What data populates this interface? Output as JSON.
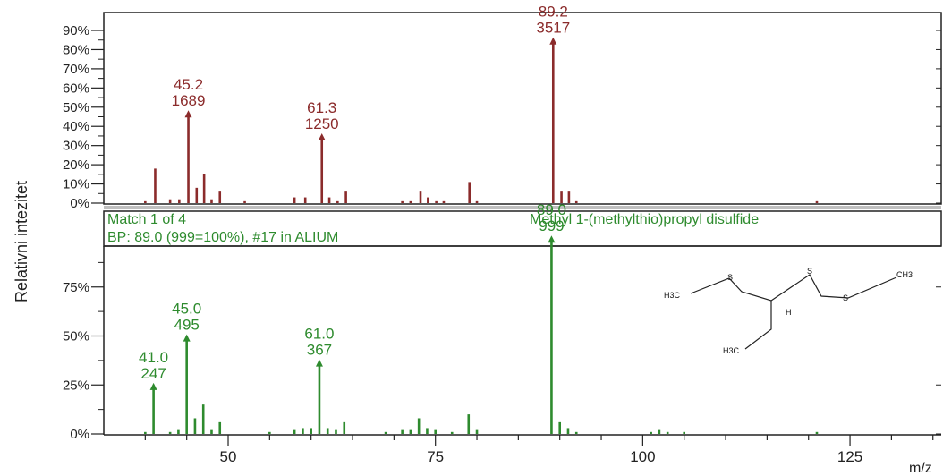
{
  "colors": {
    "top_spectrum": "#8b2b2b",
    "bottom_spectrum": "#2e8b2e",
    "axis": "#222222",
    "info_text": "#2e8b2e",
    "separator": "#bfbfbf"
  },
  "y_axis_label": "Relativni intezitet",
  "x_axis_label": "m/z",
  "info": {
    "match": "Match 1 of 4",
    "base_peak": "BP: 89.0 (999=100%),  #17 in ALIUM",
    "compound": "Methyl 1-(methylthio)propyl disulfide"
  },
  "structure": {
    "atom_labels": [
      "H3C",
      "S",
      "H",
      "S",
      "S",
      "CH3",
      "H3C"
    ]
  },
  "chart_data": [
    {
      "type": "bar",
      "title": "",
      "xlim": [
        35,
        136
      ],
      "ylim": [
        0,
        92
      ],
      "yticks": [
        0,
        10,
        20,
        30,
        40,
        50,
        60,
        70,
        80,
        90
      ],
      "yticklabels": [
        "0%",
        "10%",
        "20%",
        "30%",
        "40%",
        "50%",
        "60%",
        "70%",
        "80%",
        "90%"
      ],
      "peaks": [
        {
          "mz": 40,
          "rel": 1
        },
        {
          "mz": 41.2,
          "rel": 18
        },
        {
          "mz": 43,
          "rel": 2
        },
        {
          "mz": 44.1,
          "rel": 2
        },
        {
          "mz": 45.2,
          "rel": 47
        },
        {
          "mz": 46.2,
          "rel": 8
        },
        {
          "mz": 47.1,
          "rel": 15
        },
        {
          "mz": 48,
          "rel": 2
        },
        {
          "mz": 49,
          "rel": 6
        },
        {
          "mz": 52,
          "rel": 1
        },
        {
          "mz": 58,
          "rel": 3
        },
        {
          "mz": 59.3,
          "rel": 3
        },
        {
          "mz": 61.3,
          "rel": 35
        },
        {
          "mz": 62.2,
          "rel": 3
        },
        {
          "mz": 63.2,
          "rel": 1
        },
        {
          "mz": 64.2,
          "rel": 6
        },
        {
          "mz": 71,
          "rel": 1
        },
        {
          "mz": 72,
          "rel": 1
        },
        {
          "mz": 73.2,
          "rel": 6
        },
        {
          "mz": 74.1,
          "rel": 3
        },
        {
          "mz": 75.1,
          "rel": 1
        },
        {
          "mz": 76,
          "rel": 1
        },
        {
          "mz": 79.1,
          "rel": 11
        },
        {
          "mz": 80,
          "rel": 1
        },
        {
          "mz": 89.2,
          "rel": 85
        },
        {
          "mz": 90.2,
          "rel": 6
        },
        {
          "mz": 91.1,
          "rel": 6
        },
        {
          "mz": 92,
          "rel": 1
        },
        {
          "mz": 121,
          "rel": 1
        }
      ],
      "labeled_peaks": [
        {
          "mz": 45.2,
          "rel": 47,
          "label1": "45.2",
          "label2": "1689"
        },
        {
          "mz": 61.3,
          "rel": 35,
          "label1": "61.3",
          "label2": "1250"
        },
        {
          "mz": 89.2,
          "rel": 85,
          "label1": "89.2",
          "label2": "3517"
        }
      ]
    },
    {
      "type": "bar",
      "title": "",
      "xlabel": "m/z",
      "xlim": [
        35,
        136
      ],
      "ylim": [
        0,
        100
      ],
      "xticks": [
        50,
        75,
        100,
        125
      ],
      "xticklabels": [
        "50",
        "75",
        "100",
        "125"
      ],
      "yticks": [
        0,
        25,
        50,
        75
      ],
      "yticklabels": [
        "0%",
        "25%",
        "50%",
        "75%"
      ],
      "peaks": [
        {
          "mz": 40,
          "rel": 1
        },
        {
          "mz": 41,
          "rel": 24.7
        },
        {
          "mz": 43,
          "rel": 1
        },
        {
          "mz": 44,
          "rel": 2
        },
        {
          "mz": 45,
          "rel": 49.5
        },
        {
          "mz": 46,
          "rel": 8
        },
        {
          "mz": 47,
          "rel": 15
        },
        {
          "mz": 48,
          "rel": 2
        },
        {
          "mz": 49,
          "rel": 6
        },
        {
          "mz": 55,
          "rel": 1
        },
        {
          "mz": 58,
          "rel": 2
        },
        {
          "mz": 59,
          "rel": 3
        },
        {
          "mz": 60,
          "rel": 3
        },
        {
          "mz": 61,
          "rel": 36.7
        },
        {
          "mz": 62,
          "rel": 3
        },
        {
          "mz": 63,
          "rel": 2
        },
        {
          "mz": 64,
          "rel": 6
        },
        {
          "mz": 69,
          "rel": 1
        },
        {
          "mz": 71,
          "rel": 2
        },
        {
          "mz": 72,
          "rel": 2
        },
        {
          "mz": 73,
          "rel": 8
        },
        {
          "mz": 74,
          "rel": 3
        },
        {
          "mz": 75,
          "rel": 2
        },
        {
          "mz": 77,
          "rel": 1
        },
        {
          "mz": 79,
          "rel": 10
        },
        {
          "mz": 80,
          "rel": 2
        },
        {
          "mz": 89,
          "rel": 99.9
        },
        {
          "mz": 90,
          "rel": 6
        },
        {
          "mz": 91,
          "rel": 3
        },
        {
          "mz": 92,
          "rel": 1
        },
        {
          "mz": 101,
          "rel": 1
        },
        {
          "mz": 102,
          "rel": 2
        },
        {
          "mz": 103,
          "rel": 1
        },
        {
          "mz": 105,
          "rel": 1
        },
        {
          "mz": 121,
          "rel": 1
        }
      ],
      "labeled_peaks": [
        {
          "mz": 41,
          "rel": 24.7,
          "label1": "41.0",
          "label2": "247"
        },
        {
          "mz": 45,
          "rel": 49.5,
          "label1": "45.0",
          "label2": "495"
        },
        {
          "mz": 61,
          "rel": 36.7,
          "label1": "61.0",
          "label2": "367"
        },
        {
          "mz": 89,
          "rel": 99.9,
          "label1": "89.0",
          "label2": "999"
        }
      ]
    }
  ]
}
